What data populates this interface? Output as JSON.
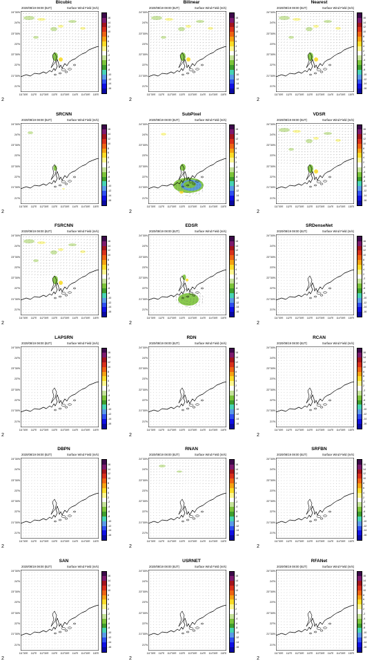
{
  "figure": {
    "timestamp": "2020/08/19 08:00 (BJT)",
    "field_label": "Surface Wind Field (m/s)",
    "reference_vector_label": "2",
    "lat_ticks": [
      "24°30'N",
      "24°N",
      "23°30'N",
      "23°N",
      "22°30'N",
      "22°N",
      "21°30'N",
      "21°N"
    ],
    "lon_ticks": [
      "111°30'E",
      "112°E",
      "112°30'E",
      "113°E",
      "113°30'E",
      "114°E",
      "114°30'E",
      "115°E"
    ],
    "colorbar_ticks": [
      "16",
      "14",
      "12",
      "10",
      "8",
      "6",
      "4",
      "2",
      "-2",
      "-4",
      "-6",
      "-8",
      "-10",
      "-12",
      "-14",
      "-16"
    ],
    "colorbar_colors": [
      "#3d0a4a",
      "#7d1a6e",
      "#a3141e",
      "#d8301c",
      "#ee6414",
      "#f5a213",
      "#fadc28",
      "#fbf68e",
      "#ffffff",
      "#c5e29a",
      "#7cc43a",
      "#3f9e2e",
      "#47d4b4",
      "#5a9ae8",
      "#2e4ef0",
      "#1010e4",
      "#0a0aa0"
    ]
  },
  "panels": [
    {
      "title": "Bicubic",
      "timestamp": "2020/08/19 08:00 (BJT)",
      "shading": "mild"
    },
    {
      "title": "Bilinear",
      "timestamp": "2020/08/19 08:00 (BJT)",
      "shading": "mild"
    },
    {
      "title": "Nearest",
      "timestamp": "2020/08/19 08:00 (BJT)",
      "shading": "mild"
    },
    {
      "title": "SRCNN",
      "timestamp": "2020/08/19 08:00 (BJT)",
      "shading": "light"
    },
    {
      "title": "SubPixel",
      "timestamp": "2020/08/19 08:00 (BJT)",
      "shading": "vortex"
    },
    {
      "title": "VDSR",
      "timestamp": "2020/08/19 08:00 (BJT)",
      "shading": "mild"
    },
    {
      "title": "FSRCNN",
      "timestamp": "2020/08/19 08:00 (BJT)",
      "shading": "mild"
    },
    {
      "title": "EDSR",
      "timestamp": "2020/08/19 08:00 (BJT)",
      "shading": "blob"
    },
    {
      "title": "SRDenseNet",
      "timestamp": "2020/08/19 08:00 (BJT)",
      "shading": "none"
    },
    {
      "title": "LAPSRN",
      "timestamp": "2020/08/19 08:00 (BJT)",
      "shading": "none"
    },
    {
      "title": "RDN",
      "timestamp": "2020/08/19 08:00 (BJT)",
      "shading": "none"
    },
    {
      "title": "RCAN",
      "timestamp": "2020/08/19 08:00 (BJT)",
      "shading": "none"
    },
    {
      "title": "DBPN",
      "timestamp": "2020/08/19 08:00 (BJT)",
      "shading": "none"
    },
    {
      "title": "RNAN",
      "timestamp": "2020/08/19 08:00 (BJT)",
      "shading": "faint"
    },
    {
      "title": "SRFBN",
      "timestamp": "2020/08/19 08:00 (BJT)",
      "shading": "none"
    },
    {
      "title": "SAN",
      "timestamp": "2020/08/19 08:00 (BJT)",
      "shading": "none"
    },
    {
      "title": "USRNET",
      "timestamp": "2020/08/19 08:00 (BJT)",
      "shading": "none"
    },
    {
      "title": "RFANet",
      "timestamp": "2020/08/19 08:00 (BJT)",
      "shading": "none"
    }
  ]
}
